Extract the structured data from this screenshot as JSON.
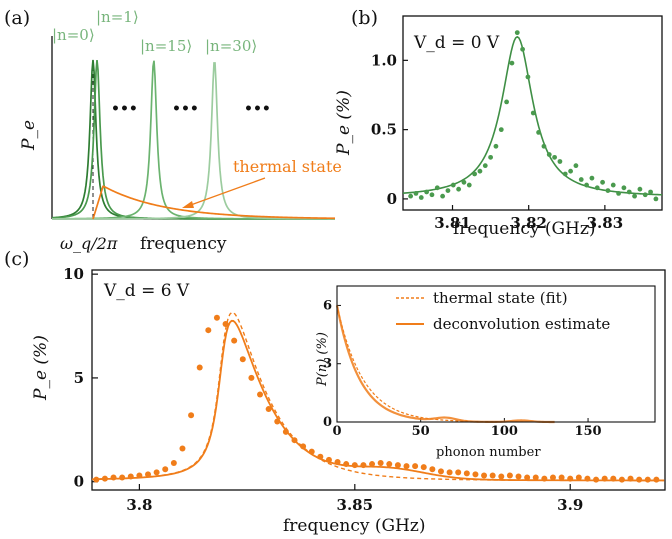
{
  "chart_data": [
    {
      "panel": "(a)",
      "type": "line",
      "ylabel": "P_e",
      "xlabel": "frequency",
      "x_marker": "ω_q/2π",
      "series": [
        {
          "name": "|n=0⟩",
          "center": 0.0,
          "color": "#2e7d32"
        },
        {
          "name": "|n=1⟩",
          "center": 0.1,
          "color": "#4a9a4e"
        },
        {
          "name": "|n=15⟩",
          "center": 1.5,
          "color": "#6bb36f"
        },
        {
          "name": "|n=30⟩",
          "center": 3.0,
          "color": "#9ccc9f"
        },
        {
          "name": "thermal state",
          "color": "#f07d1a"
        }
      ],
      "ellipsis": [
        "•••",
        "•••",
        "•••"
      ]
    },
    {
      "panel": "(b)",
      "type": "scatter",
      "annotation": "V_d = 0 V",
      "xlabel": "frequency (GHz)",
      "ylabel": "P_e (%)",
      "xlim": [
        3.8035,
        3.8375
      ],
      "ylim": [
        -0.08,
        1.32
      ],
      "xticks": [
        "3.81",
        "3.82",
        "3.83"
      ],
      "yticks": [
        "0",
        "0.5",
        "1.0"
      ],
      "fit": {
        "center": 3.8185,
        "peak": 1.16,
        "hwhm": 0.0025,
        "offset": 0.01
      },
      "points_x": [
        3.8045,
        3.8052,
        3.8059,
        3.8066,
        3.8073,
        3.808,
        3.8087,
        3.8094,
        3.8101,
        3.8108,
        3.8115,
        3.8122,
        3.8129,
        3.8136,
        3.8143,
        3.815,
        3.8157,
        3.8164,
        3.8171,
        3.8178,
        3.8185,
        3.8192,
        3.8199,
        3.8206,
        3.8213,
        3.822,
        3.8227,
        3.8234,
        3.8241,
        3.8248,
        3.8255,
        3.8262,
        3.8269,
        3.8276,
        3.8283,
        3.829,
        3.8297,
        3.8304,
        3.8311,
        3.8318,
        3.8325,
        3.8332,
        3.8339,
        3.8346,
        3.8353,
        3.836,
        3.8367
      ],
      "points_y": [
        0.02,
        0.04,
        0.01,
        0.05,
        0.03,
        0.08,
        0.02,
        0.06,
        0.1,
        0.07,
        0.12,
        0.1,
        0.18,
        0.2,
        0.24,
        0.3,
        0.38,
        0.5,
        0.7,
        0.98,
        1.2,
        1.08,
        0.88,
        0.62,
        0.48,
        0.38,
        0.32,
        0.3,
        0.27,
        0.18,
        0.2,
        0.24,
        0.14,
        0.1,
        0.15,
        0.08,
        0.12,
        0.06,
        0.1,
        0.04,
        0.08,
        0.05,
        0.02,
        0.07,
        0.03,
        0.05,
        0.0
      ]
    },
    {
      "panel": "(c)",
      "type": "scatter",
      "annotation": "V_d = 6 V",
      "xlabel": "frequency (GHz)",
      "ylabel": "P_e (%)",
      "xlim": [
        3.789,
        3.922
      ],
      "ylim": [
        -0.4,
        10.2
      ],
      "xticks": [
        "3.8",
        "3.85",
        "3.9"
      ],
      "yticks": [
        "0",
        "5",
        "10"
      ],
      "thermal_fit_peak": 8.1,
      "deconvolution_peak": 7.7,
      "points_x": [
        3.79,
        3.792,
        3.794,
        3.796,
        3.798,
        3.8,
        3.802,
        3.804,
        3.806,
        3.808,
        3.81,
        3.812,
        3.814,
        3.816,
        3.818,
        3.82,
        3.822,
        3.824,
        3.826,
        3.828,
        3.83,
        3.832,
        3.834,
        3.836,
        3.838,
        3.84,
        3.842,
        3.844,
        3.846,
        3.848,
        3.85,
        3.852,
        3.854,
        3.856,
        3.858,
        3.86,
        3.862,
        3.864,
        3.866,
        3.868,
        3.87,
        3.872,
        3.874,
        3.876,
        3.878,
        3.88,
        3.882,
        3.884,
        3.886,
        3.888,
        3.89,
        3.892,
        3.894,
        3.896,
        3.898,
        3.9,
        3.902,
        3.904,
        3.906,
        3.908,
        3.91,
        3.912,
        3.914,
        3.916,
        3.918,
        3.92
      ],
      "points_y": [
        0.1,
        0.15,
        0.2,
        0.2,
        0.25,
        0.3,
        0.35,
        0.45,
        0.6,
        0.9,
        1.6,
        3.2,
        5.5,
        7.3,
        7.9,
        7.6,
        6.8,
        5.9,
        5.0,
        4.2,
        3.5,
        2.9,
        2.4,
        2.0,
        1.7,
        1.45,
        1.2,
        1.05,
        0.95,
        0.85,
        0.8,
        0.8,
        0.85,
        0.9,
        0.85,
        0.8,
        0.75,
        0.75,
        0.7,
        0.6,
        0.5,
        0.45,
        0.45,
        0.4,
        0.35,
        0.3,
        0.3,
        0.25,
        0.3,
        0.25,
        0.2,
        0.2,
        0.15,
        0.2,
        0.2,
        0.15,
        0.2,
        0.15,
        0.1,
        0.15,
        0.15,
        0.1,
        0.15,
        0.1,
        0.1,
        0.1
      ],
      "inset": {
        "type": "line",
        "xlabel": "phonon number",
        "ylabel": "P(n) (%)",
        "xlim": [
          0,
          190
        ],
        "ylim": [
          0,
          7
        ],
        "xticks": [
          "0",
          "50",
          "100",
          "150"
        ],
        "yticks": [
          "0",
          "3",
          "6"
        ],
        "nbar": 15.5,
        "p0": 6.0,
        "series": [
          {
            "name": "thermal state (fit)",
            "style": "dashed"
          },
          {
            "name": "deconvolution estimate",
            "style": "solid"
          }
        ]
      }
    }
  ]
}
